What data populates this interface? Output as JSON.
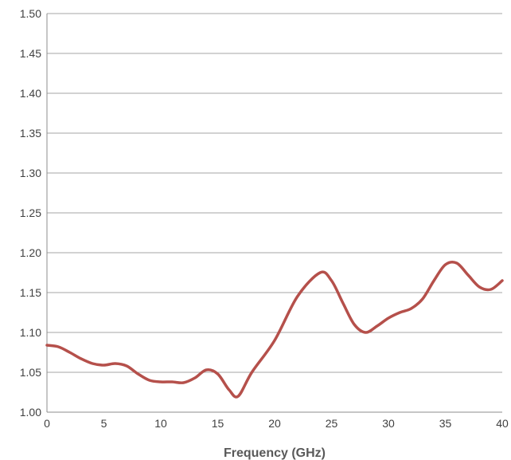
{
  "chart_data": {
    "type": "line",
    "title": "",
    "xlabel": "Frequency (GHz)",
    "ylabel": "",
    "xlim": [
      0,
      40
    ],
    "ylim": [
      1.0,
      1.5
    ],
    "x_ticks": [
      0,
      5,
      10,
      15,
      20,
      25,
      30,
      35,
      40
    ],
    "x_tick_labels": [
      "0",
      "5",
      "10",
      "15",
      "20",
      "25",
      "30",
      "35",
      "40"
    ],
    "y_ticks": [
      1.0,
      1.05,
      1.1,
      1.15,
      1.2,
      1.25,
      1.3,
      1.35,
      1.4,
      1.45,
      1.5
    ],
    "y_tick_labels": [
      "1.00",
      "1.05",
      "1.10",
      "1.15",
      "1.20",
      "1.25",
      "1.30",
      "1.35",
      "1.40",
      "1.45",
      "1.50"
    ],
    "grid": "horizontal",
    "legend": "none",
    "line_color": "#b5504b",
    "grid_color": "#a6a6a6",
    "series": [
      {
        "x": [
          0,
          1,
          2,
          3,
          4,
          5,
          6,
          7,
          8,
          9,
          10,
          11,
          12,
          13,
          14,
          15,
          16,
          16.8,
          18,
          20,
          22,
          24,
          25,
          26,
          27,
          28,
          29,
          30,
          31,
          32,
          33,
          34,
          35,
          36,
          37,
          38,
          39,
          40
        ],
        "y": [
          1.084,
          1.082,
          1.075,
          1.067,
          1.061,
          1.059,
          1.061,
          1.058,
          1.048,
          1.04,
          1.038,
          1.038,
          1.037,
          1.043,
          1.053,
          1.048,
          1.028,
          1.02,
          1.05,
          1.09,
          1.145,
          1.175,
          1.165,
          1.137,
          1.11,
          1.1,
          1.108,
          1.118,
          1.125,
          1.13,
          1.142,
          1.165,
          1.185,
          1.187,
          1.172,
          1.157,
          1.154,
          1.165
        ]
      }
    ]
  }
}
